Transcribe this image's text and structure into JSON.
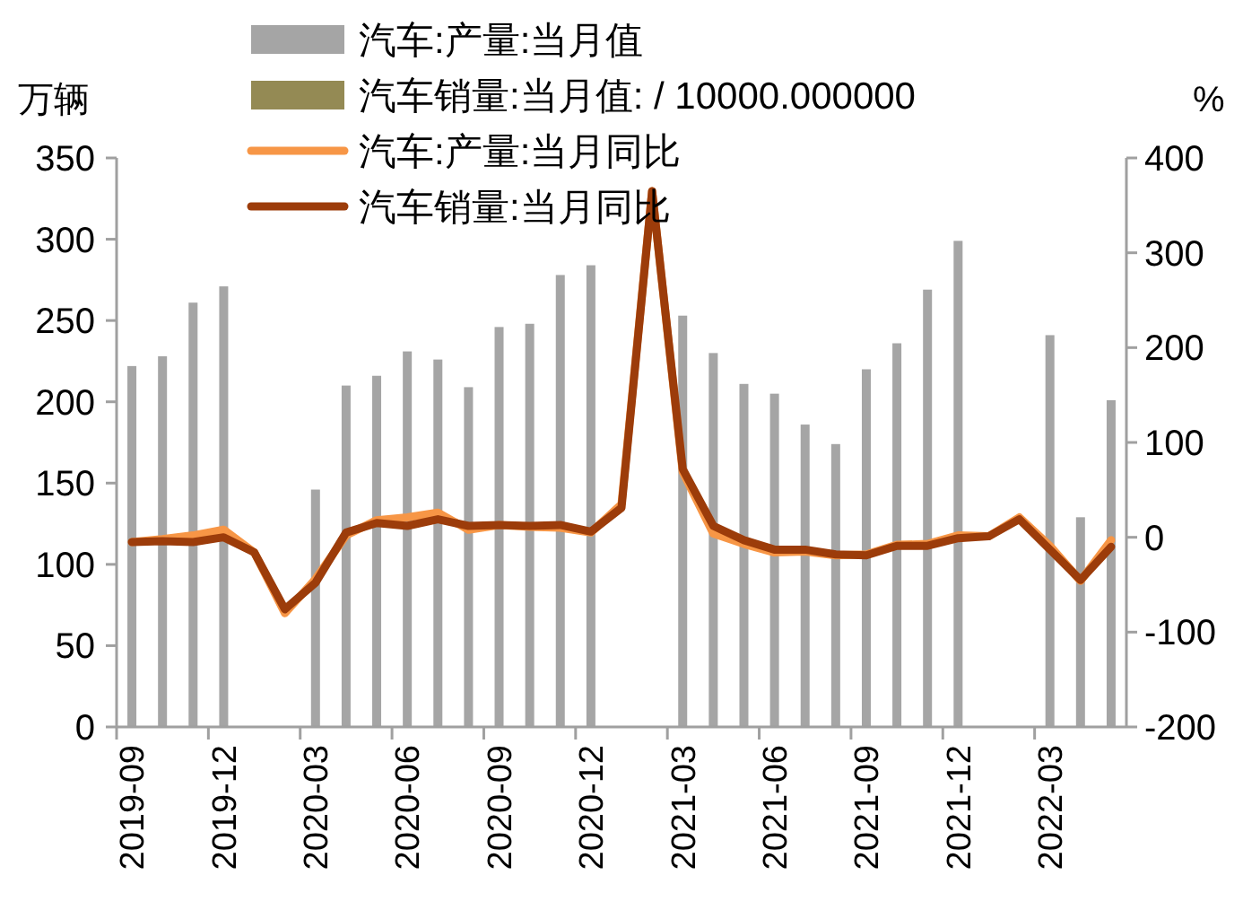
{
  "chart_data": {
    "type": "bar",
    "ylabel": "万辆",
    "y2label": "%",
    "categories": [
      "2019-09",
      null,
      null,
      "2019-12",
      null,
      null,
      "2020-03",
      null,
      null,
      "2020-06",
      null,
      null,
      "2020-09",
      null,
      null,
      "2020-12",
      null,
      null,
      "2021-03",
      null,
      null,
      "2021-06",
      null,
      null,
      "2021-09",
      null,
      null,
      "2021-12",
      null,
      null,
      "2022-03",
      null,
      null
    ],
    "ylim": [
      0,
      350
    ],
    "yticks": [
      0,
      50,
      100,
      150,
      200,
      250,
      300,
      350
    ],
    "y2lim": [
      -200,
      400
    ],
    "y2ticks": [
      -200,
      -100,
      0,
      100,
      200,
      300,
      400
    ],
    "legend": "top",
    "grid": false,
    "series": [
      {
        "name": "汽车:产量:当月值",
        "color": "#a5a5a5",
        "values": [
          222,
          228,
          261,
          271,
          null,
          null,
          146,
          210,
          216,
          231,
          226,
          209,
          246,
          248,
          278,
          284,
          null,
          null,
          253,
          230,
          211,
          205,
          186,
          174,
          220,
          236,
          269,
          299,
          null,
          null,
          241,
          129,
          201
        ]
      },
      {
        "name": "汽车销量:当月值: / 10000.000000",
        "color": "#948a54",
        "values": [
          0,
          0,
          0,
          0,
          null,
          null,
          0,
          0,
          0,
          0,
          0,
          0,
          0,
          0,
          0,
          0,
          null,
          null,
          0,
          0,
          0,
          0,
          0,
          0,
          0,
          0,
          0,
          0,
          null,
          null,
          0,
          0,
          0
        ]
      },
      {
        "name": "汽车:产量:当月同比",
        "type": "line",
        "axis": "y2",
        "color": "#f79646",
        "values": [
          -5,
          -2,
          2,
          8,
          -16,
          -80,
          -44,
          2,
          18,
          21,
          26,
          8,
          13,
          11,
          10,
          5,
          35,
          365,
          69,
          4,
          -7,
          -16,
          -15,
          -19,
          -18,
          -8,
          -7,
          2,
          1,
          21,
          -9,
          -46,
          -3
        ]
      },
      {
        "name": "汽车销量:当月同比",
        "type": "line",
        "axis": "y2",
        "color": "#9c3c0a",
        "values": [
          -5,
          -4,
          -5,
          0,
          -16,
          -76,
          -48,
          5,
          15,
          12,
          19,
          12,
          13,
          12,
          13,
          6,
          31,
          365,
          72,
          12,
          -3,
          -13,
          -13,
          -18,
          -19,
          -9,
          -9,
          -1,
          1,
          19,
          -13,
          -45,
          -10
        ]
      }
    ]
  }
}
